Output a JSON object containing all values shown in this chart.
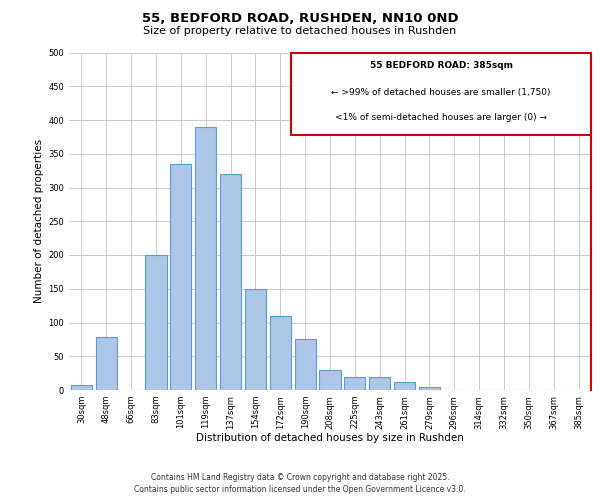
{
  "title": "55, BEDFORD ROAD, RUSHDEN, NN10 0ND",
  "subtitle": "Size of property relative to detached houses in Rushden",
  "xlabel": "Distribution of detached houses by size in Rushden",
  "ylabel": "Number of detached properties",
  "bar_labels": [
    "30sqm",
    "48sqm",
    "66sqm",
    "83sqm",
    "101sqm",
    "119sqm",
    "137sqm",
    "154sqm",
    "172sqm",
    "190sqm",
    "208sqm",
    "225sqm",
    "243sqm",
    "261sqm",
    "279sqm",
    "296sqm",
    "314sqm",
    "332sqm",
    "350sqm",
    "367sqm",
    "385sqm"
  ],
  "bar_heights": [
    8,
    78,
    0,
    200,
    335,
    390,
    320,
    150,
    110,
    75,
    30,
    20,
    20,
    12,
    5,
    0,
    0,
    0,
    0,
    0,
    0
  ],
  "bar_color": "#aec6e8",
  "bar_edge_color": "#5a9fd4",
  "ylim": [
    0,
    500
  ],
  "yticks": [
    0,
    50,
    100,
    150,
    200,
    250,
    300,
    350,
    400,
    450,
    500
  ],
  "grid_color": "#cccccc",
  "annotation_title": "55 BEDFORD ROAD: 385sqm",
  "annotation_line1": "← >99% of detached houses are smaller (1,750)",
  "annotation_line2": "<1% of semi-detached houses are larger (0) →",
  "annotation_box_color": "#cc0000",
  "footer_line1": "Contains HM Land Registry data © Crown copyright and database right 2025.",
  "footer_line2": "Contains public sector information licensed under the Open Government Licence v3.0.",
  "bg_color": "#ffffff",
  "title_fontsize": 9.5,
  "subtitle_fontsize": 8,
  "axis_label_fontsize": 7.5,
  "tick_fontsize": 6,
  "annotation_fontsize": 6.5,
  "footer_fontsize": 5.5
}
